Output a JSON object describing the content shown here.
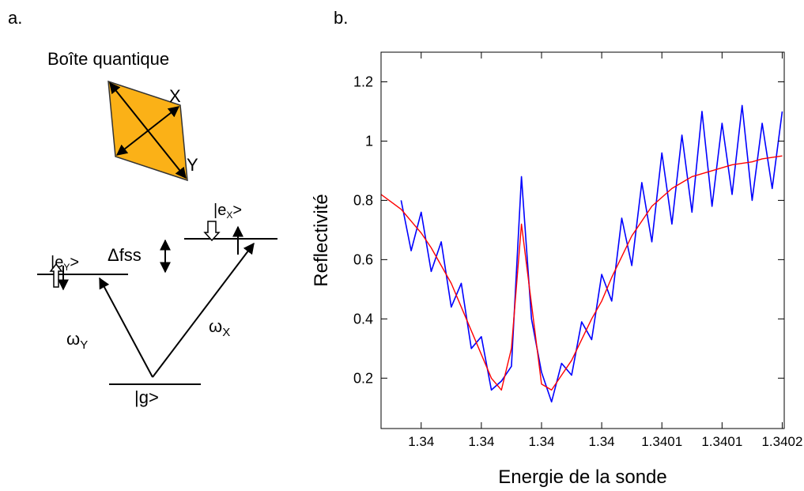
{
  "panel_a": {
    "label": "a.",
    "title": "Boîte quantique",
    "axis_x": "X",
    "axis_y": "Y",
    "state_ey": {
      "prefix": "|e",
      "sub": "Y",
      "suffix": ">"
    },
    "state_ex": {
      "prefix": "|e",
      "sub": "X",
      "suffix": ">"
    },
    "splitting": "Δfss",
    "omega_y": {
      "prefix": "ω",
      "sub": "Y"
    },
    "omega_x": {
      "prefix": "ω",
      "sub": "X"
    },
    "ground": "|g>"
  },
  "chart_data": {
    "type": "line",
    "panel_label": "b.",
    "x_label": "Energie de la sonde",
    "y_label": "Reflectivité",
    "x": [
      1.33995,
      1.33996,
      1.339965,
      1.33997,
      1.339975,
      1.33998,
      1.339985,
      1.33999,
      1.339995,
      1.34,
      1.340005,
      1.34001,
      1.340015,
      1.34002,
      1.340025,
      1.34003,
      1.340035,
      1.34004,
      1.340045,
      1.34005,
      1.340055,
      1.34006,
      1.340065,
      1.34007,
      1.340075,
      1.34008,
      1.340085,
      1.34009,
      1.340095,
      1.3401,
      1.340105,
      1.34011,
      1.340115,
      1.34012,
      1.340125,
      1.34013,
      1.340135,
      1.34014,
      1.340145,
      1.34015
    ],
    "series": [
      {
        "color": "#0000ff",
        "values": [
          null,
          0.8,
          0.63,
          0.76,
          0.56,
          0.66,
          0.44,
          0.52,
          0.3,
          0.34,
          0.16,
          0.19,
          0.24,
          0.88,
          0.4,
          0.22,
          0.12,
          0.25,
          0.21,
          0.39,
          0.33,
          0.55,
          0.46,
          0.74,
          0.58,
          0.86,
          0.66,
          0.96,
          0.72,
          1.02,
          0.76,
          1.1,
          0.78,
          1.06,
          0.82,
          1.12,
          0.8,
          1.06,
          0.84,
          1.1
        ]
      },
      {
        "color": "#ff0000",
        "values": [
          0.82,
          0.77,
          0.73,
          0.69,
          0.64,
          0.58,
          0.52,
          0.44,
          0.36,
          0.28,
          0.2,
          0.16,
          0.3,
          0.72,
          0.45,
          0.18,
          0.16,
          0.21,
          0.26,
          0.33,
          0.4,
          0.46,
          0.54,
          0.61,
          0.68,
          0.73,
          0.78,
          0.81,
          0.84,
          0.86,
          0.88,
          0.89,
          0.9,
          0.91,
          0.92,
          0.925,
          0.93,
          0.94,
          0.945,
          0.95
        ]
      }
    ],
    "xlim": [
      1.33995,
      1.340151
    ],
    "xticks": [
      {
        "value": 1.33997,
        "label": "1.34"
      },
      1.34,
      {
        "value": 1.34003,
        "label": "1.34"
      },
      {
        "value": 1.34006,
        "label": "1.34"
      },
      {
        "value": 1.34009,
        "label": "1.3401"
      },
      {
        "value": 1.34012,
        "label": "1.3401"
      },
      {
        "value": 1.34015,
        "label": "1.3402"
      }
    ],
    "ylim": [
      0.03,
      1.3
    ],
    "yticks": [
      0.2,
      0.4,
      0.6,
      0.8,
      1,
      1.2
    ]
  }
}
